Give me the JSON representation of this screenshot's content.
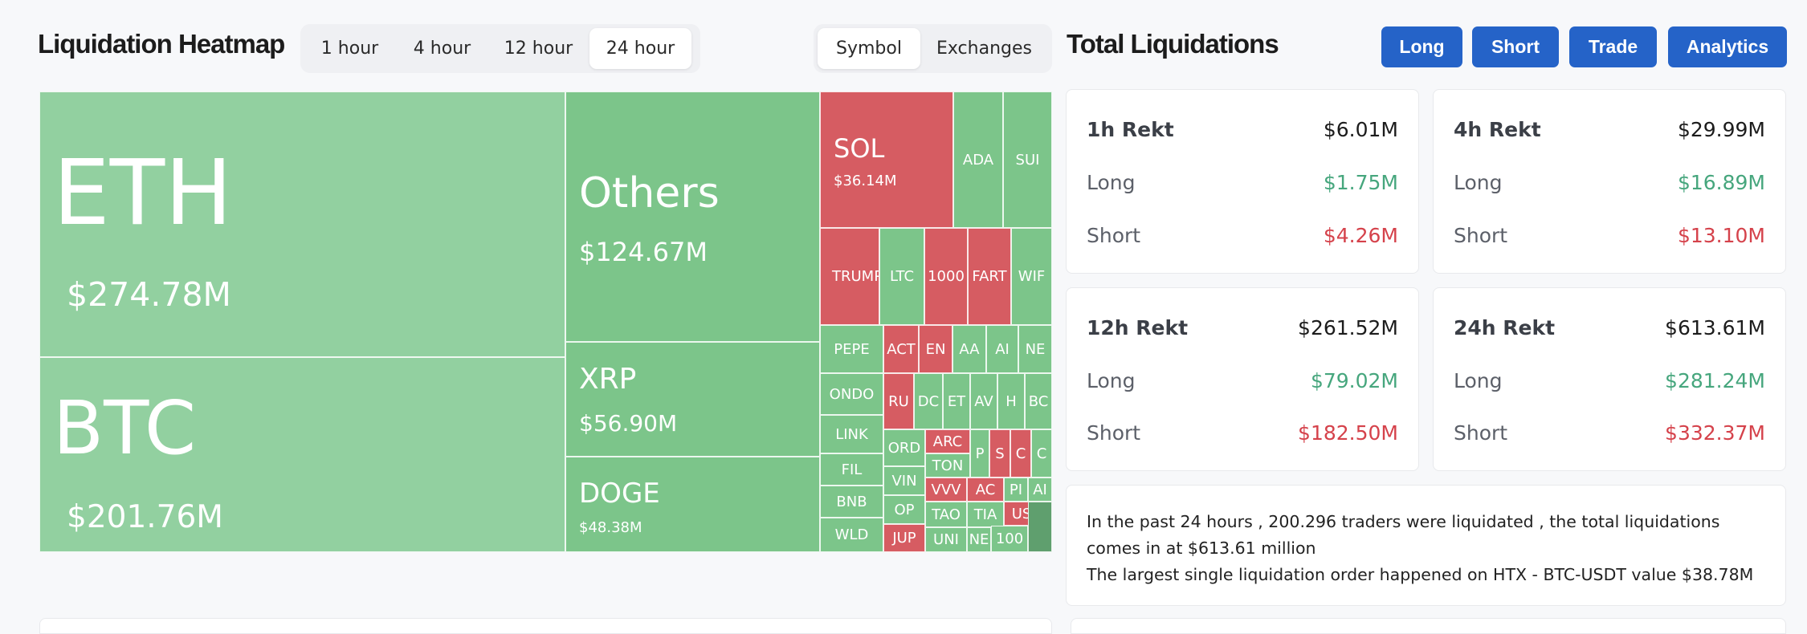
{
  "header": {
    "title": "Liquidation Heatmap",
    "time_tabs": [
      "1 hour",
      "4 hour",
      "12 hour",
      "24 hour"
    ],
    "active_time_tab": "24 hour",
    "view_tabs": [
      "Symbol",
      "Exchanges"
    ],
    "active_view_tab": "Symbol"
  },
  "totals": {
    "title": "Total Liquidations",
    "buttons": [
      "Long",
      "Short",
      "Trade",
      "Analytics"
    ],
    "long_label": "Long",
    "short_label": "Short",
    "cards": [
      {
        "head": "1h Rekt",
        "total": "$6.01M",
        "long": "$1.75M",
        "short": "$4.26M"
      },
      {
        "head": "4h Rekt",
        "total": "$29.99M",
        "long": "$16.89M",
        "short": "$13.10M"
      },
      {
        "head": "12h Rekt",
        "total": "$261.52M",
        "long": "$79.02M",
        "short": "$182.50M"
      },
      {
        "head": "24h Rekt",
        "total": "$613.61M",
        "long": "$281.24M",
        "short": "$332.37M"
      }
    ],
    "summary_line1": "In the past 24 hours , 200.296 traders were liquidated , the total liquidations comes in at $613.61 million",
    "summary_line2": "The largest single liquidation order happened on HTX - BTC-USDT value $38.78M"
  },
  "colors": {
    "long_green": "#92d0a0",
    "short_red": "#d65c62",
    "accent_blue": "#2563c8"
  },
  "treemap": {
    "eth": {
      "symbol": "ETH",
      "value": "$274.78M"
    },
    "btc": {
      "symbol": "BTC",
      "value": "$201.76M"
    },
    "others": {
      "symbol": "Others",
      "value": "$124.67M"
    },
    "xrp": {
      "symbol": "XRP",
      "value": "$56.90M"
    },
    "doge": {
      "symbol": "DOGE",
      "value": "$48.38M"
    },
    "sol": {
      "symbol": "SOL",
      "value": "$36.14M"
    },
    "small": [
      "ADA",
      "SUI",
      "TRUMP",
      "LTC",
      "1000",
      "FART",
      "WIF",
      "PEPE",
      "ACT",
      "EN",
      "AA",
      "AI",
      "NE",
      "ONDO",
      "RU",
      "DC",
      "ET",
      "AV",
      "H",
      "BC",
      "LINK",
      "ORD",
      "ARC",
      "P",
      "S",
      "C",
      "C",
      "FIL",
      "VIN",
      "TON",
      "BNB",
      "OP",
      "VVV",
      "AC",
      "PI",
      "AI",
      "TAO",
      "TIA",
      "WLD",
      "JUP",
      "UNI",
      "NE",
      "US",
      "100"
    ]
  }
}
